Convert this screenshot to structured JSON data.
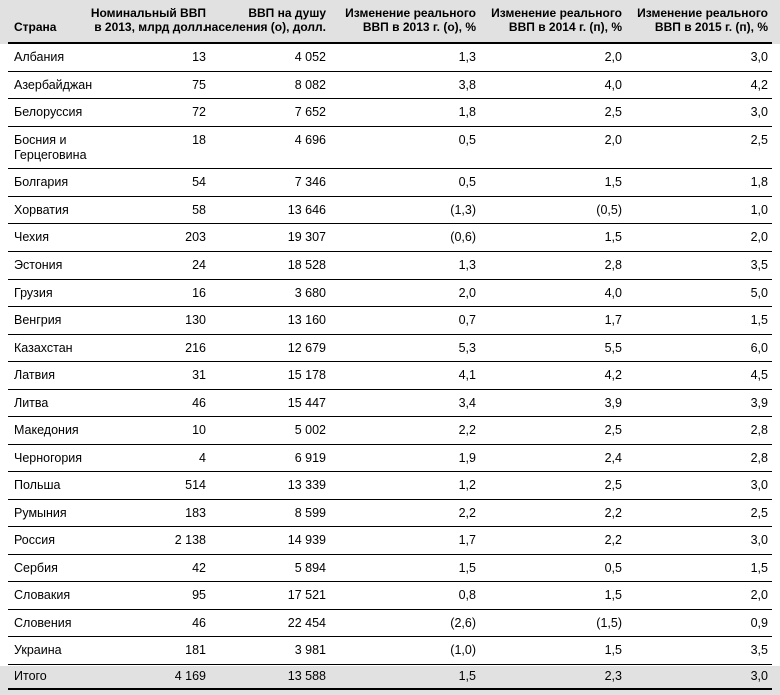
{
  "chart_data": {
    "type": "table",
    "columns": [
      {
        "key": "country",
        "lines": [
          "Страна"
        ]
      },
      {
        "key": "gdp_2013",
        "lines": [
          "Номинальный ВВП",
          "в 2013, млрд долл."
        ]
      },
      {
        "key": "gdp_per_capita",
        "lines": [
          "ВВП на душу",
          "населения (о), долл."
        ]
      },
      {
        "key": "change_2013",
        "lines": [
          "Изменение реального",
          "ВВП в 2013 г. (о), %"
        ]
      },
      {
        "key": "change_2014",
        "lines": [
          "Изменение реального",
          "ВВП в 2014 г. (п), %"
        ]
      },
      {
        "key": "change_2015",
        "lines": [
          "Изменение реального",
          "ВВП в 2015 г. (п), %"
        ]
      }
    ],
    "rows": [
      {
        "country": "Албания",
        "gdp_2013": "13",
        "gdp_per_capita": "4 052",
        "change_2013": "1,3",
        "change_2014": "2,0",
        "change_2015": "3,0"
      },
      {
        "country": "Азербайджан",
        "gdp_2013": "75",
        "gdp_per_capita": "8 082",
        "change_2013": "3,8",
        "change_2014": "4,0",
        "change_2015": "4,2"
      },
      {
        "country": "Белоруссия",
        "gdp_2013": "72",
        "gdp_per_capita": "7 652",
        "change_2013": "1,8",
        "change_2014": "2,5",
        "change_2015": "3,0"
      },
      {
        "country": "Босния и Герцеговина",
        "gdp_2013": "18",
        "gdp_per_capita": "4 696",
        "change_2013": "0,5",
        "change_2014": "2,0",
        "change_2015": "2,5"
      },
      {
        "country": "Болгария",
        "gdp_2013": "54",
        "gdp_per_capita": "7 346",
        "change_2013": "0,5",
        "change_2014": "1,5",
        "change_2015": "1,8"
      },
      {
        "country": "Хорватия",
        "gdp_2013": "58",
        "gdp_per_capita": "13 646",
        "change_2013": "(1,3)",
        "change_2014": "(0,5)",
        "change_2015": "1,0"
      },
      {
        "country": "Чехия",
        "gdp_2013": "203",
        "gdp_per_capita": "19 307",
        "change_2013": "(0,6)",
        "change_2014": "1,5",
        "change_2015": "2,0"
      },
      {
        "country": "Эстония",
        "gdp_2013": "24",
        "gdp_per_capita": "18 528",
        "change_2013": "1,3",
        "change_2014": "2,8",
        "change_2015": "3,5"
      },
      {
        "country": "Грузия",
        "gdp_2013": "16",
        "gdp_per_capita": "3 680",
        "change_2013": "2,0",
        "change_2014": "4,0",
        "change_2015": "5,0"
      },
      {
        "country": "Венгрия",
        "gdp_2013": "130",
        "gdp_per_capita": "13 160",
        "change_2013": "0,7",
        "change_2014": "1,7",
        "change_2015": "1,5"
      },
      {
        "country": "Казахстан",
        "gdp_2013": "216",
        "gdp_per_capita": "12 679",
        "change_2013": "5,3",
        "change_2014": "5,5",
        "change_2015": "6,0"
      },
      {
        "country": "Латвия",
        "gdp_2013": "31",
        "gdp_per_capita": "15 178",
        "change_2013": "4,1",
        "change_2014": "4,2",
        "change_2015": "4,5"
      },
      {
        "country": "Литва",
        "gdp_2013": "46",
        "gdp_per_capita": "15 447",
        "change_2013": "3,4",
        "change_2014": "3,9",
        "change_2015": "3,9"
      },
      {
        "country": "Македония",
        "gdp_2013": "10",
        "gdp_per_capita": "5 002",
        "change_2013": "2,2",
        "change_2014": "2,5",
        "change_2015": "2,8"
      },
      {
        "country": "Черногория",
        "gdp_2013": "4",
        "gdp_per_capita": "6 919",
        "change_2013": "1,9",
        "change_2014": "2,4",
        "change_2015": "2,8"
      },
      {
        "country": "Польша",
        "gdp_2013": "514",
        "gdp_per_capita": "13 339",
        "change_2013": "1,2",
        "change_2014": "2,5",
        "change_2015": "3,0"
      },
      {
        "country": "Румыния",
        "gdp_2013": "183",
        "gdp_per_capita": "8 599",
        "change_2013": "2,2",
        "change_2014": "2,2",
        "change_2015": "2,5"
      },
      {
        "country": "Россия",
        "gdp_2013": "2 138",
        "gdp_per_capita": "14 939",
        "change_2013": "1,7",
        "change_2014": "2,2",
        "change_2015": "3,0"
      },
      {
        "country": "Сербия",
        "gdp_2013": "42",
        "gdp_per_capita": "5 894",
        "change_2013": "1,5",
        "change_2014": "0,5",
        "change_2015": "1,5"
      },
      {
        "country": "Словакия",
        "gdp_2013": "95",
        "gdp_per_capita": "17 521",
        "change_2013": "0,8",
        "change_2014": "1,5",
        "change_2015": "2,0"
      },
      {
        "country": "Словения",
        "gdp_2013": "46",
        "gdp_per_capita": "22 454",
        "change_2013": "(2,6)",
        "change_2014": "(1,5)",
        "change_2015": "0,9"
      },
      {
        "country": "Украина",
        "gdp_2013": "181",
        "gdp_per_capita": "3 981",
        "change_2013": "(1,0)",
        "change_2014": "1,5",
        "change_2015": "3,5"
      },
      {
        "country": "Итого",
        "gdp_2013": "4 169",
        "gdp_per_capita": "13 588",
        "change_2013": "1,5",
        "change_2014": "2,3",
        "change_2015": "3,0",
        "total": true
      }
    ],
    "layout_hints": {
      "grid": "horizontal-rules-only",
      "header_background": "#e1e1e1",
      "total_row_background": "#e1e1e1",
      "negative_values_format": "parentheses",
      "decimal_separator": ","
    },
    "colors": {
      "band_gray": "#e1e1e1",
      "rule_black": "#000000",
      "text": "#000000"
    }
  }
}
